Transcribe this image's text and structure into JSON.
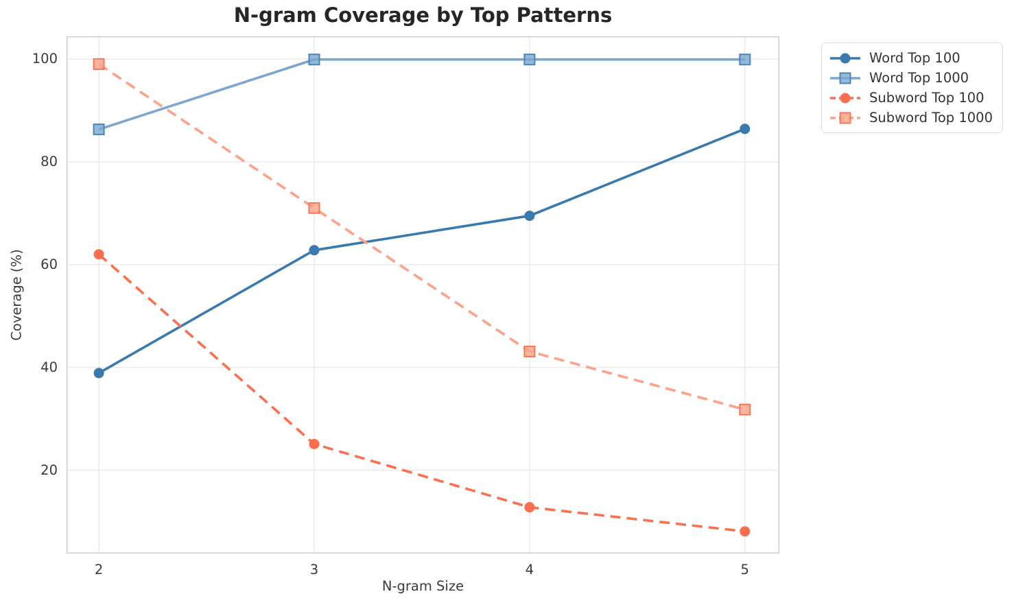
{
  "figure": {
    "title": "N-gram Coverage by Top Patterns",
    "xlabel": "N-gram Size",
    "ylabel": "Coverage (%)"
  },
  "chart_data": {
    "type": "line",
    "title": "N-gram Coverage by Top Patterns",
    "xlabel": "N-gram Size",
    "ylabel": "Coverage (%)",
    "x": [
      2,
      3,
      4,
      5
    ],
    "series": [
      {
        "name": "Word Top 100",
        "values": [
          38.9,
          62.8,
          69.5,
          86.4
        ],
        "color": "#3a79ad",
        "edge": "#3a79ad",
        "linestyle": "solid",
        "marker": "circle"
      },
      {
        "name": "Word Top 1000",
        "values": [
          86.3,
          99.9,
          99.9,
          99.9
        ],
        "color": "#7ba7ce",
        "edge": "#4c84b5",
        "linestyle": "solid",
        "marker": "square"
      },
      {
        "name": "Subword Top 100",
        "values": [
          62.0,
          25.1,
          12.8,
          8.1
        ],
        "color": "#fc6f4e",
        "edge": "#fc6f4e",
        "linestyle": "dashed",
        "marker": "circle"
      },
      {
        "name": "Subword Top 1000",
        "values": [
          99.0,
          71.0,
          43.1,
          31.8
        ],
        "color": "#fda189",
        "edge": "#fb764f",
        "linestyle": "dashed",
        "marker": "square"
      }
    ],
    "x_ticks": [
      2,
      3,
      4,
      5
    ],
    "y_ticks": [
      20,
      40,
      60,
      80,
      100
    ],
    "xlim": [
      1.85,
      5.16
    ],
    "ylim": [
      3.8,
      104.4
    ],
    "grid": true,
    "legend_position": "outside-right"
  },
  "colors": {
    "grid": "#e9e9e9",
    "spine": "#cccccc",
    "tick_text": "#3a3a3a",
    "title_text": "#262626",
    "legend_border": "#d9d9d9"
  }
}
